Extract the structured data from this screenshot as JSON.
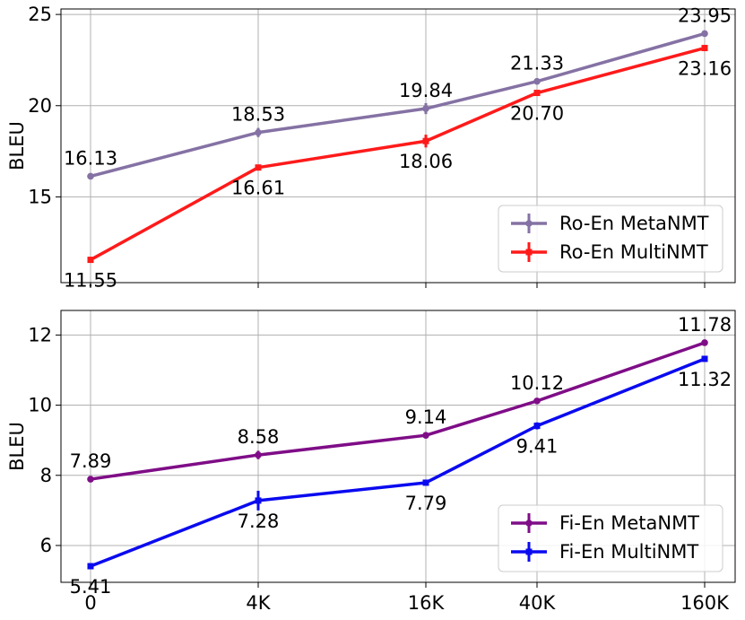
{
  "chart_data": [
    {
      "type": "line",
      "ylabel": "BLEU",
      "xlabel": "",
      "categories": [
        "0",
        "4K",
        "16K",
        "40K",
        "160K"
      ],
      "ylim": [
        10.3,
        25.3
      ],
      "yticks": [
        15,
        20,
        25
      ],
      "grid": true,
      "legend_position": "bottom-right",
      "show_x_tick_labels": false,
      "series": [
        {
          "name": "Ro-En MetaNMT",
          "color": "#8572a4",
          "marker": "circle",
          "values": [
            16.13,
            18.53,
            19.84,
            21.33,
            23.95
          ],
          "error": [
            0.0,
            0.25,
            0.3,
            0.0,
            0.15
          ],
          "labels": [
            "16.13",
            "18.53",
            "19.84",
            "21.33",
            "23.95"
          ],
          "label_pos": [
            "above",
            "above",
            "above",
            "above",
            "above"
          ]
        },
        {
          "name": "Ro-En MultiNMT",
          "color": "#ff1a1a",
          "marker": "square",
          "values": [
            11.55,
            16.61,
            18.06,
            20.7,
            23.16
          ],
          "error": [
            0.0,
            0.0,
            0.35,
            0.0,
            0.0
          ],
          "labels": [
            "11.55",
            "16.61",
            "18.06",
            "20.70",
            "23.16"
          ],
          "label_pos": [
            "below",
            "below",
            "below",
            "below",
            "below"
          ]
        }
      ]
    },
    {
      "type": "line",
      "ylabel": "BLEU",
      "xlabel": "",
      "categories": [
        "0",
        "4K",
        "16K",
        "40K",
        "160K"
      ],
      "ylim": [
        4.95,
        12.7
      ],
      "yticks": [
        6,
        8,
        10,
        12
      ],
      "grid": true,
      "legend_position": "bottom-right",
      "show_x_tick_labels": true,
      "series": [
        {
          "name": "Fi-En MetaNMT",
          "color": "#7f0d87",
          "marker": "circle",
          "values": [
            7.89,
            8.58,
            9.14,
            10.12,
            11.78
          ],
          "error": [
            0.0,
            0.12,
            0.0,
            0.0,
            0.0
          ],
          "labels": [
            "7.89",
            "8.58",
            "9.14",
            "10.12",
            "11.78"
          ],
          "label_pos": [
            "above",
            "above",
            "above",
            "above",
            "above"
          ]
        },
        {
          "name": "Fi-En MultiNMT",
          "color": "#0a0af0",
          "marker": "square",
          "values": [
            5.41,
            7.28,
            7.79,
            9.41,
            11.32
          ],
          "error": [
            0.0,
            0.28,
            0.0,
            0.1,
            0.0
          ],
          "labels": [
            "5.41",
            "7.28",
            "7.79",
            "9.41",
            "11.32"
          ],
          "label_pos": [
            "below",
            "below",
            "below",
            "below",
            "below"
          ]
        }
      ]
    }
  ]
}
